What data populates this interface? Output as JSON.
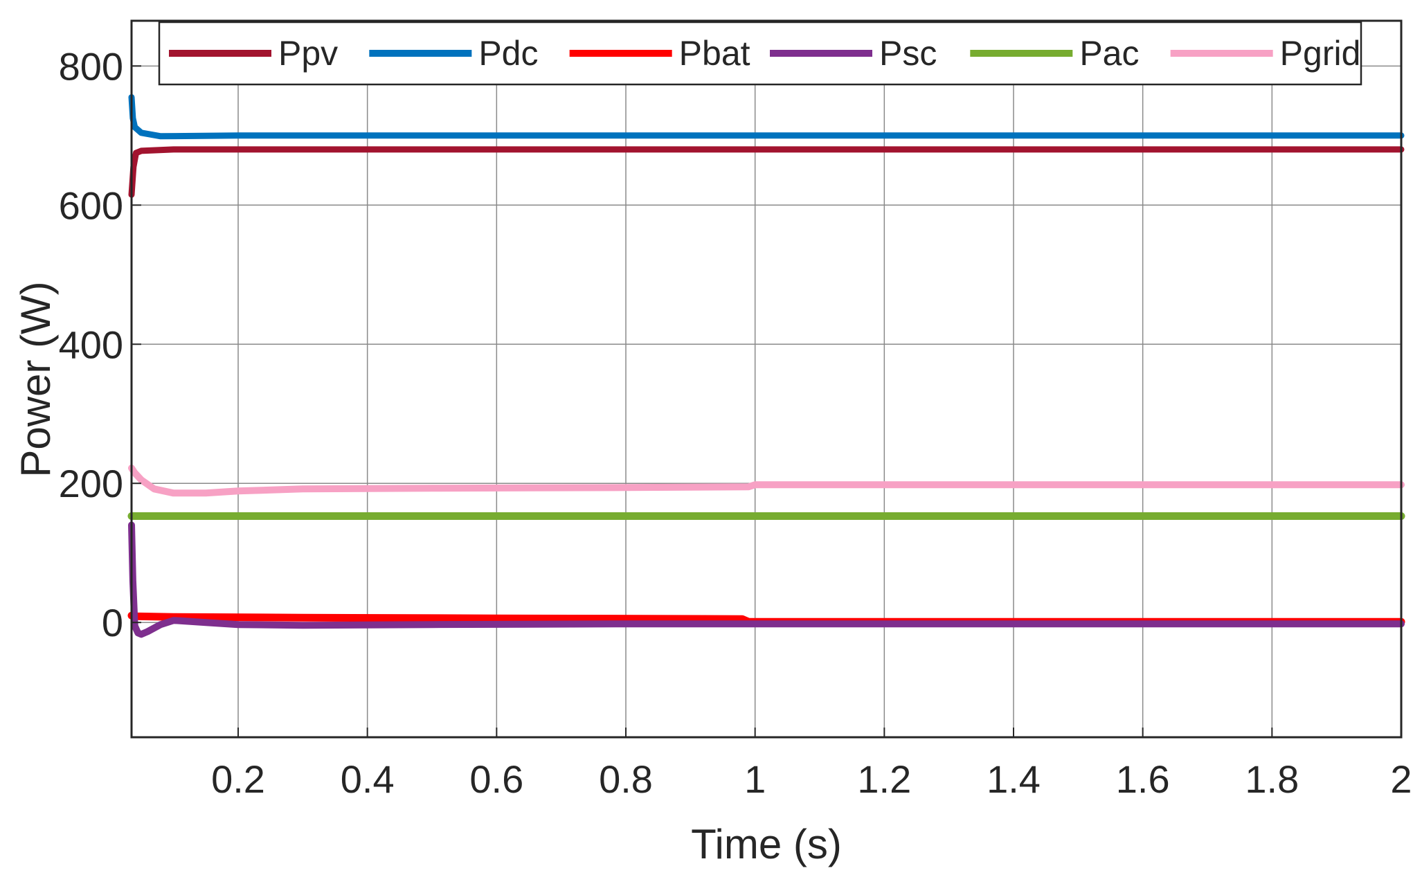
{
  "chart_data": {
    "type": "line",
    "title": "",
    "xlabel": "Time (s)",
    "ylabel": "Power (W)",
    "xlim": [
      0.035,
      2
    ],
    "ylim": [
      -165,
      865
    ],
    "xticks": [
      0.2,
      0.4,
      0.6,
      0.8,
      1,
      1.2,
      1.4,
      1.6,
      1.8,
      2
    ],
    "xtick_labels": [
      "0.2",
      "0.4",
      "0.6",
      "0.8",
      "1",
      "1.2",
      "1.4",
      "1.6",
      "1.8",
      "2"
    ],
    "yticks": [
      0,
      200,
      400,
      600,
      800
    ],
    "ytick_labels": [
      "0",
      "200",
      "400",
      "600",
      "800"
    ],
    "grid": true,
    "legend_position": "top",
    "series": [
      {
        "name": "Ppv",
        "color": "#A2142F",
        "x": [
          0.035,
          0.038,
          0.042,
          0.05,
          0.1,
          0.5,
          1.0,
          1.5,
          2.0
        ],
        "y": [
          615,
          655,
          675,
          678,
          680,
          680,
          680,
          680,
          680
        ]
      },
      {
        "name": "Pdc",
        "color": "#0072BD",
        "x": [
          0.035,
          0.037,
          0.04,
          0.05,
          0.08,
          0.2,
          0.5,
          1.0,
          1.5,
          2.0
        ],
        "y": [
          755,
          725,
          712,
          704,
          699,
          700,
          700,
          700,
          700,
          700
        ]
      },
      {
        "name": "Pbat",
        "color": "#FF0000",
        "x": [
          0.035,
          0.04,
          0.1,
          0.3,
          0.6,
          0.98,
          0.99,
          1.2,
          1.6,
          2.0
        ],
        "y": [
          10,
          9,
          8,
          7,
          6,
          5,
          1,
          1,
          1,
          1
        ]
      },
      {
        "name": "Psc",
        "color": "#7E2F8E",
        "x": [
          0.035,
          0.037,
          0.04,
          0.045,
          0.05,
          0.06,
          0.08,
          0.1,
          0.15,
          0.2,
          0.3,
          0.5,
          0.8,
          1.0,
          1.5,
          2.0
        ],
        "y": [
          140,
          60,
          -5,
          -15,
          -17,
          -13,
          -3,
          3,
          0,
          -3,
          -4,
          -3,
          -2,
          -2,
          -2,
          -2
        ]
      },
      {
        "name": "Pac",
        "color": "#77AC30",
        "x": [
          0.035,
          0.5,
          1.0,
          1.5,
          2.0
        ],
        "y": [
          153,
          153,
          153,
          153,
          153
        ]
      },
      {
        "name": "Pgrid",
        "color": "#F7A1C4",
        "x": [
          0.035,
          0.04,
          0.05,
          0.07,
          0.1,
          0.15,
          0.2,
          0.3,
          0.5,
          0.8,
          0.99,
          1.0,
          1.5,
          2.0
        ],
        "y": [
          222,
          215,
          205,
          192,
          186,
          186,
          189,
          192,
          193,
          194,
          195,
          198,
          198,
          198
        ]
      }
    ]
  }
}
